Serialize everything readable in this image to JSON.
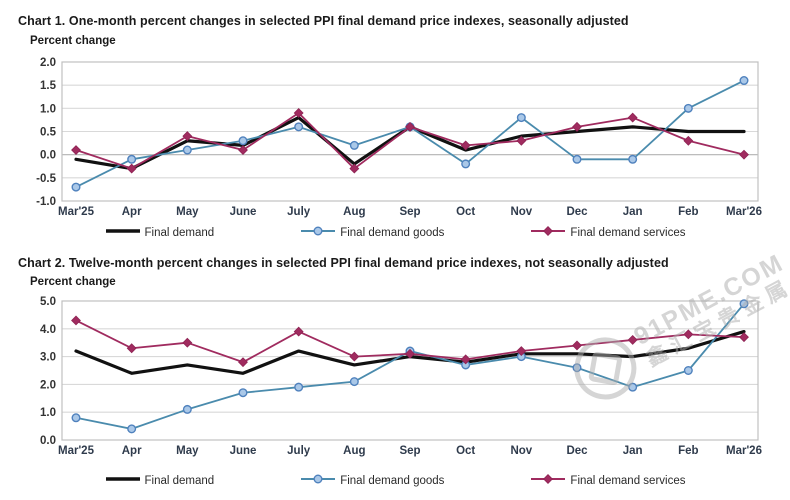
{
  "page": {
    "background": "#ffffff"
  },
  "watermark": {
    "brand": "91PME.COM",
    "cjk": "鑫汇宝贵金属",
    "color": "#adadad"
  },
  "style_colors": {
    "grid": "#d9d9d9",
    "zero_line": "#b3b3b3",
    "plot_border": "#c0c0c0",
    "y_tick_text": "#333333",
    "x_tick_text": "#2f3b4c",
    "title_text": "#1a1a1a"
  },
  "chart_data": [
    {
      "type": "line",
      "title": "Chart 1. One-month percent changes in selected PPI final demand price indexes, seasonally adjusted",
      "ylabel": "Percent change",
      "xlabel": "",
      "ylim": [
        -1.0,
        2.0
      ],
      "ytick_step": 0.5,
      "ytick_labels": [
        "2.0",
        "1.5",
        "1.0",
        "0.5",
        "0.0",
        "-0.5",
        "-1.0"
      ],
      "grid": true,
      "legend_position": "bottom",
      "categories": [
        "Mar'25",
        "Apr",
        "May",
        "June",
        "July",
        "Aug",
        "Sep",
        "Oct",
        "Nov",
        "Dec",
        "Jan",
        "Feb",
        "Mar'26"
      ],
      "series": [
        {
          "name": "Final demand",
          "color": "#111111",
          "line_width": 3.2,
          "marker": "none",
          "values": [
            -0.1,
            -0.3,
            0.3,
            0.2,
            0.8,
            -0.2,
            0.6,
            0.1,
            0.4,
            0.5,
            0.6,
            0.5,
            0.5
          ]
        },
        {
          "name": "Final demand goods",
          "color": "#4a8bad",
          "line_width": 1.8,
          "marker": "circle",
          "marker_fill": "#aac8e8",
          "marker_stroke": "#4f81bd",
          "values": [
            -0.7,
            -0.1,
            0.1,
            0.3,
            0.6,
            0.2,
            0.6,
            -0.2,
            0.8,
            -0.1,
            -0.1,
            1.0,
            1.6
          ]
        },
        {
          "name": "Final demand services",
          "color": "#a02b5f",
          "line_width": 1.8,
          "marker": "diamond",
          "marker_fill": "#a02b5f",
          "marker_stroke": "#8e2454",
          "values": [
            0.1,
            -0.3,
            0.4,
            0.1,
            0.9,
            -0.3,
            0.6,
            0.2,
            0.3,
            0.6,
            0.8,
            0.3,
            0.0
          ]
        }
      ]
    },
    {
      "type": "line",
      "title": "Chart 2. Twelve-month percent changes in selected PPI final demand price indexes, not seasonally adjusted",
      "ylabel": "Percent change",
      "xlabel": "",
      "ylim": [
        0.0,
        5.0
      ],
      "ytick_step": 1.0,
      "ytick_labels": [
        "5.0",
        "4.0",
        "3.0",
        "2.0",
        "1.0",
        "0.0"
      ],
      "grid": true,
      "legend_position": "bottom",
      "categories": [
        "Mar'25",
        "Apr",
        "May",
        "June",
        "July",
        "Aug",
        "Sep",
        "Oct",
        "Nov",
        "Dec",
        "Jan",
        "Feb",
        "Mar'26"
      ],
      "series": [
        {
          "name": "Final demand",
          "color": "#111111",
          "line_width": 3.2,
          "marker": "none",
          "values": [
            3.2,
            2.4,
            2.7,
            2.4,
            3.2,
            2.7,
            3.0,
            2.8,
            3.1,
            3.1,
            3.0,
            3.3,
            3.9
          ]
        },
        {
          "name": "Final demand goods",
          "color": "#4a8bad",
          "line_width": 1.8,
          "marker": "circle",
          "marker_fill": "#aac8e8",
          "marker_stroke": "#4f81bd",
          "values": [
            0.8,
            0.4,
            1.1,
            1.7,
            1.9,
            2.1,
            3.2,
            2.7,
            3.0,
            2.6,
            1.9,
            2.5,
            4.9
          ]
        },
        {
          "name": "Final demand services",
          "color": "#a02b5f",
          "line_width": 1.8,
          "marker": "diamond",
          "marker_fill": "#a02b5f",
          "marker_stroke": "#8e2454",
          "values": [
            4.3,
            3.3,
            3.5,
            2.8,
            3.9,
            3.0,
            3.1,
            2.9,
            3.2,
            3.4,
            3.6,
            3.8,
            3.7
          ]
        }
      ]
    }
  ]
}
